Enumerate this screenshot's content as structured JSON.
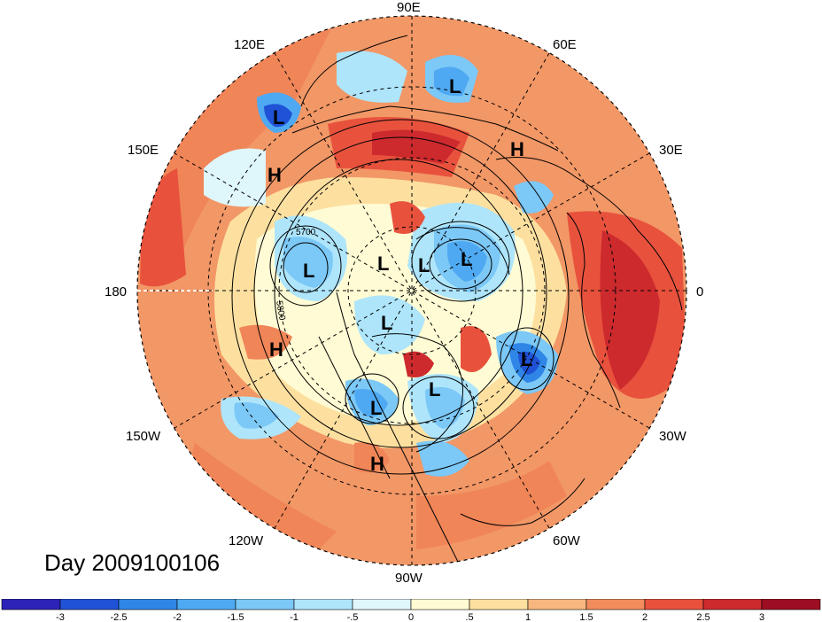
{
  "title": "Day 2009100106",
  "longitude_labels": [
    "90E",
    "60E",
    "30E",
    "0",
    "30W",
    "60W",
    "90W",
    "120W",
    "150W",
    "180",
    "150E",
    "120E"
  ],
  "contour_labels": [
    "5700",
    "5800"
  ],
  "pressure_centers": [
    "L",
    "L",
    "L",
    "L",
    "L",
    "L",
    "L",
    "L",
    "L",
    "L",
    "H",
    "H",
    "H",
    "H"
  ],
  "colorbar": {
    "ticks": [
      "-3",
      "-2.5",
      "-2",
      "-1.5",
      "-1",
      "-.5",
      "0",
      ".5",
      "1",
      "1.5",
      "2",
      "2.5",
      "3"
    ],
    "colors": [
      "#2d23b8",
      "#1f52d6",
      "#2f86e6",
      "#4fa9f2",
      "#7cc8f7",
      "#aee5fb",
      "#dff6fb",
      "#fffbd4",
      "#fde0a0",
      "#f8b77e",
      "#f28c5c",
      "#e8523d",
      "#cd2a2e",
      "#9e0e22"
    ]
  }
}
